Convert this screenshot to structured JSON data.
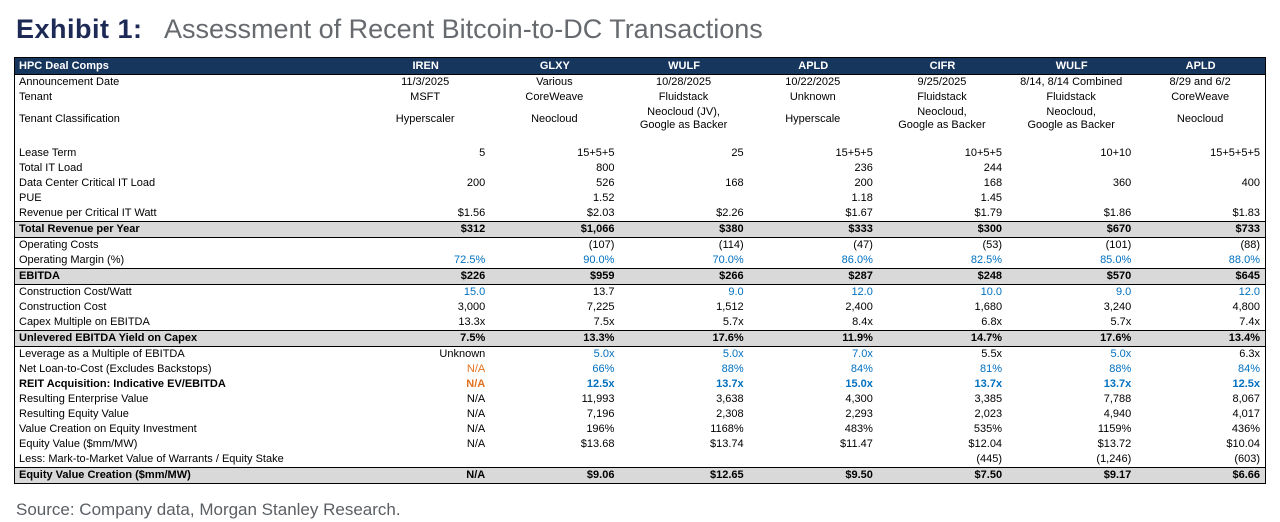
{
  "title": {
    "exhibit": "Exhibit 1:",
    "text": "Assessment of Recent Bitcoin-to-DC Transactions"
  },
  "source": "Source: Company data, Morgan Stanley Research.",
  "colors": {
    "header_bg": "#17365d",
    "highlight_bg": "#d9d9d9",
    "estimate_blue": "#0070c0",
    "na_orange": "#e3721e",
    "title_navy": "#1e2a56",
    "title_gray": "#666a6e"
  },
  "table": {
    "header": [
      "HPC Deal Comps",
      "IREN",
      "GLXY",
      "WULF",
      "APLD",
      "CIFR",
      "WULF",
      "APLD"
    ],
    "rows": [
      {
        "label": "Announcement Date",
        "align": "center",
        "values": [
          "11/3/2025",
          "Various",
          "10/28/2025",
          "10/22/2025",
          "9/25/2025",
          "8/14, 8/14 Combined",
          "8/29 and 6/2"
        ]
      },
      {
        "label": "Tenant",
        "align": "center",
        "values": [
          "MSFT",
          "CoreWeave",
          "Fluidstack",
          "Unknown",
          "Fluidstack",
          "Fluidstack",
          "CoreWeave"
        ]
      },
      {
        "label": "Tenant Classification",
        "align": "center",
        "values": [
          "Hyperscaler",
          "Neocloud",
          "Neocloud (JV),\nGoogle as Backer",
          "Hyperscale",
          "Neocloud,\nGoogle as Backer",
          "Neocloud,\nGoogle as Backer",
          "Neocloud"
        ]
      },
      {
        "type": "spacer",
        "label": "",
        "values": [
          "",
          "",
          "",
          "",
          "",
          "",
          ""
        ]
      },
      {
        "label": "Lease Term",
        "values": [
          "5",
          "15+5+5",
          "25",
          "15+5+5",
          "10+5+5",
          "10+10",
          "15+5+5+5"
        ]
      },
      {
        "label": "Total IT Load",
        "values": [
          "",
          "800",
          "",
          "236",
          "244",
          "",
          ""
        ]
      },
      {
        "label": "Data Center Critical IT Load",
        "values": [
          "200",
          "526",
          "168",
          "200",
          "168",
          "360",
          "400"
        ]
      },
      {
        "label": "PUE",
        "values": [
          "",
          "1.52",
          "",
          "1.18",
          "1.45",
          "",
          ""
        ]
      },
      {
        "label": "Revenue per Critical IT Watt",
        "values": [
          "$1.56",
          "$2.03",
          "$2.26",
          "$1.67",
          "$1.79",
          "$1.86",
          "$1.83"
        ]
      },
      {
        "label": "Total Revenue per Year",
        "type": "highlight",
        "values": [
          "$312",
          "$1,066",
          "$380",
          "$333",
          "$300",
          "$670",
          "$733"
        ]
      },
      {
        "label": "Operating Costs",
        "values": [
          "",
          "(107)",
          "(114)",
          "(47)",
          "(53)",
          "(101)",
          "(88)"
        ]
      },
      {
        "label": "Operating Margin (%)",
        "values": [
          "72.5%",
          "90.0%",
          "70.0%",
          "86.0%",
          "82.5%",
          "85.0%",
          "88.0%"
        ],
        "colors": [
          "blue",
          "blue",
          "blue",
          "blue",
          "blue",
          "blue",
          "blue"
        ]
      },
      {
        "label": "EBITDA",
        "type": "highlight",
        "values": [
          "$226",
          "$959",
          "$266",
          "$287",
          "$248",
          "$570",
          "$645"
        ]
      },
      {
        "label": "Construction Cost/Watt",
        "values": [
          "15.0",
          "13.7",
          "9.0",
          "12.0",
          "10.0",
          "9.0",
          "12.0"
        ],
        "colors": [
          "blue",
          "",
          "blue",
          "blue",
          "blue",
          "blue",
          "blue"
        ]
      },
      {
        "label": "Construction Cost",
        "values": [
          "3,000",
          "7,225",
          "1,512",
          "2,400",
          "1,680",
          "3,240",
          "4,800"
        ]
      },
      {
        "label": "Capex Multiple on EBITDA",
        "values": [
          "13.3x",
          "7.5x",
          "5.7x",
          "8.4x",
          "6.8x",
          "5.7x",
          "7.4x"
        ]
      },
      {
        "label": "Unlevered EBITDA Yield on Capex",
        "type": "highlight",
        "values": [
          "7.5%",
          "13.3%",
          "17.6%",
          "11.9%",
          "14.7%",
          "17.6%",
          "13.4%"
        ]
      },
      {
        "label": "Leverage as a Multiple of EBITDA",
        "values": [
          "Unknown",
          "5.0x",
          "5.0x",
          "7.0x",
          "5.5x",
          "5.0x",
          "6.3x"
        ],
        "colors": [
          "",
          "blue",
          "blue",
          "blue",
          "",
          "blue",
          ""
        ]
      },
      {
        "label": "Net Loan-to-Cost (Excludes Backstops)",
        "values": [
          "N/A",
          "66%",
          "88%",
          "84%",
          "81%",
          "88%",
          "84%"
        ],
        "colors": [
          "orange",
          "blue",
          "blue",
          "blue",
          "blue",
          "blue",
          "blue"
        ]
      },
      {
        "label": "REIT Acquisition: Indicative EV/EBITDA",
        "label_bold": true,
        "values_bold": true,
        "values": [
          "N/A",
          "12.5x",
          "13.7x",
          "15.0x",
          "13.7x",
          "13.7x",
          "12.5x"
        ],
        "colors": [
          "orange",
          "blue",
          "blue",
          "blue",
          "blue",
          "blue",
          "blue"
        ]
      },
      {
        "label": "Resulting Enterprise Value",
        "values": [
          "N/A",
          "11,993",
          "3,638",
          "4,300",
          "3,385",
          "7,788",
          "8,067"
        ]
      },
      {
        "label": "Resulting Equity Value",
        "values": [
          "N/A",
          "7,196",
          "2,308",
          "2,293",
          "2,023",
          "4,940",
          "4,017"
        ]
      },
      {
        "label": "Value Creation on Equity Investment",
        "values": [
          "N/A",
          "196%",
          "1168%",
          "483%",
          "535%",
          "1159%",
          "436%"
        ]
      },
      {
        "label": "Equity Value ($mm/MW)",
        "values": [
          "N/A",
          "$13.68",
          "$13.74",
          "$11.47",
          "$12.04",
          "$13.72",
          "$10.04"
        ]
      },
      {
        "label": "Less: Mark-to-Market Value of Warrants / Equity Stake",
        "values": [
          "",
          "",
          "",
          "",
          "(445)",
          "(1,246)",
          "(603)"
        ]
      },
      {
        "label": "Equity Value Creation ($mm/MW)",
        "type": "highlight",
        "values": [
          "N/A",
          "$9.06",
          "$12.65",
          "$9.50",
          "$7.50",
          "$9.17",
          "$6.66"
        ]
      }
    ]
  }
}
